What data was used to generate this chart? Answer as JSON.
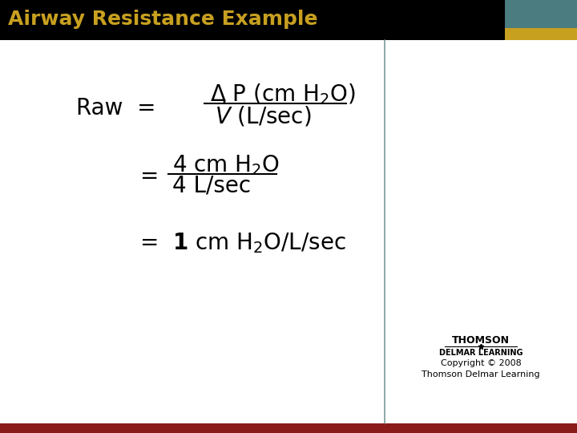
{
  "title": "Airway Resistance Example",
  "title_color": "#C8A020",
  "title_bg": "#000000",
  "header_teal_color": "#4A7C80",
  "header_gold_color": "#C8A020",
  "bg_color": "#FFFFFF",
  "bottom_bar_color": "#8B1A1A",
  "divider_color": "#7A9A9A",
  "copyright_text": "Copyright © 2008\nThomson Delmar Learning",
  "thomson_text": "THOMSON",
  "delmar_text": "DELMAR LEARNING"
}
